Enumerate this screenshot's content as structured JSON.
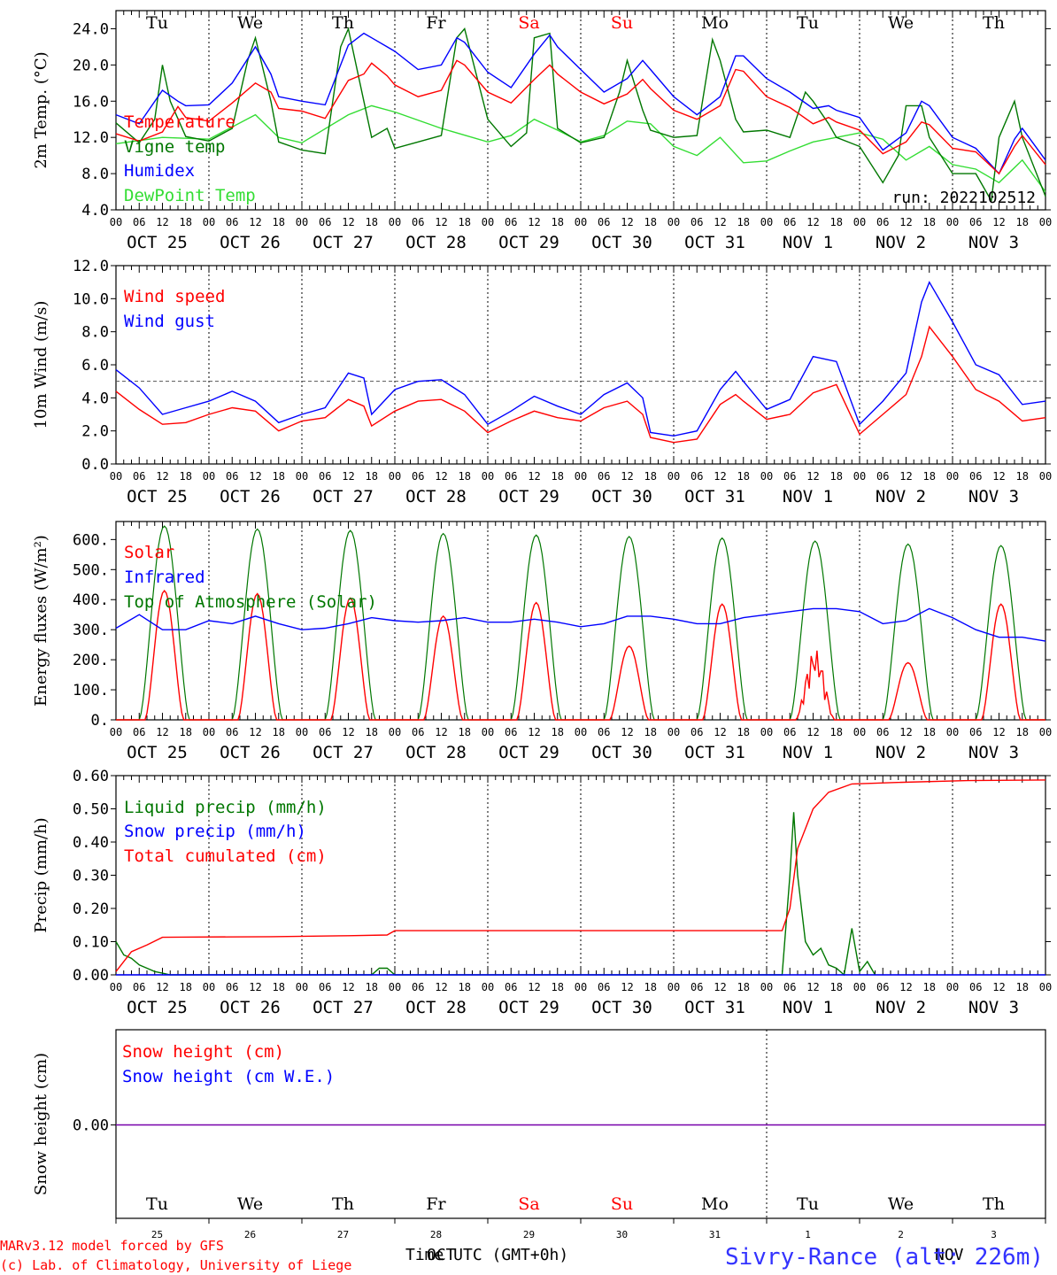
{
  "colors": {
    "red": "#ff0000",
    "blue": "#0000ff",
    "green": "#007700",
    "lightgreen": "#33dd33",
    "purple": "#7700aa",
    "axis": "#000000"
  },
  "day_labels": [
    "Tu",
    "We",
    "Th",
    "Fr",
    "Sa",
    "Su",
    "Mo",
    "Tu",
    "We",
    "Th"
  ],
  "weekend_day_indexes": [
    4,
    5
  ],
  "date_labels": [
    "OCT 25",
    "OCT 26",
    "OCT 27",
    "OCT 28",
    "OCT 29",
    "OCT 30",
    "OCT 31",
    "NOV  1",
    "NOV  2",
    "NOV  3"
  ],
  "hour_labels": [
    "00",
    "06",
    "12",
    "18"
  ],
  "final_hour_label": "00",
  "bottom_day_numbers": [
    "25",
    "26",
    "27",
    "28",
    "29",
    "30",
    "31",
    "1",
    "2",
    "3"
  ],
  "footer": {
    "model_line": "MARv3.12 model forced by GFS",
    "lab_line": "(c) Lab. of Climatology, University of Liege",
    "xlabel": "Time UTC (GMT+0h)",
    "month_overlay_1": "OCT",
    "month_overlay_2": "NOV",
    "station": "Sivry-Rance (alt: 226m)"
  },
  "chart_data": [
    {
      "id": "temp",
      "type": "line",
      "ylabel": "2m Temp. (°C)",
      "ylim": [
        4.0,
        26.0
      ],
      "yticks": [
        "4.0",
        "8.0",
        "12.0",
        "16.0",
        "20.0",
        "24.0"
      ],
      "annotation": "run: 2022102512",
      "x_unit": "hours since OCT 25 00 UTC",
      "series": [
        {
          "name": "Temperature",
          "color": "red",
          "x": [
            0,
            6,
            12,
            16,
            18,
            24,
            30,
            36,
            40,
            42,
            48,
            54,
            60,
            64,
            66,
            70,
            72,
            78,
            84,
            88,
            90,
            96,
            102,
            108,
            112,
            114,
            120,
            126,
            132,
            136,
            138,
            144,
            150,
            156,
            160,
            162,
            168,
            174,
            180,
            184,
            186,
            192,
            198,
            204,
            208,
            210,
            216,
            222,
            228,
            232,
            234,
            240
          ],
          "y": [
            12.4,
            11.6,
            12.6,
            15.4,
            14.2,
            13.8,
            15.8,
            18.0,
            17.0,
            15.2,
            14.9,
            14.1,
            18.3,
            19.0,
            20.2,
            18.8,
            17.8,
            16.5,
            17.2,
            20.5,
            20.0,
            17.0,
            15.8,
            18.4,
            20.0,
            19.0,
            17.0,
            15.7,
            16.8,
            18.4,
            17.4,
            15.0,
            14.0,
            15.5,
            19.5,
            19.3,
            16.5,
            15.3,
            13.5,
            14.2,
            13.7,
            12.8,
            10.2,
            11.5,
            13.7,
            13.4,
            10.8,
            10.4,
            8.0,
            11.0,
            12.2,
            9.0
          ]
        },
        {
          "name": "Vigne temp",
          "color": "green",
          "x": [
            0,
            6,
            10,
            12,
            14,
            18,
            24,
            30,
            34,
            36,
            40,
            42,
            48,
            54,
            58,
            60,
            64,
            66,
            70,
            72,
            78,
            84,
            88,
            90,
            96,
            102,
            106,
            108,
            112,
            114,
            120,
            126,
            130,
            132,
            136,
            138,
            144,
            150,
            154,
            156,
            160,
            162,
            168,
            174,
            178,
            180,
            184,
            186,
            192,
            198,
            202,
            204,
            208,
            210,
            216,
            222,
            226,
            228,
            232,
            234,
            240
          ],
          "y": [
            13.6,
            11.4,
            14.0,
            20.0,
            16.0,
            12.1,
            11.6,
            13.0,
            20.5,
            23.0,
            16.0,
            11.5,
            10.6,
            10.2,
            22.0,
            24.0,
            16.0,
            12.0,
            13.0,
            10.8,
            11.5,
            12.2,
            23.0,
            24.0,
            14.0,
            11.0,
            12.5,
            23.0,
            23.5,
            13.0,
            11.4,
            12.0,
            17.0,
            20.5,
            15.0,
            12.8,
            12.0,
            12.2,
            22.8,
            20.5,
            14.0,
            12.6,
            12.8,
            12.0,
            17.0,
            16.0,
            13.5,
            12.0,
            11.0,
            7.0,
            10.0,
            15.5,
            15.5,
            12.0,
            8.0,
            8.0,
            5.0,
            12.0,
            16.0,
            12.0,
            5.5
          ]
        },
        {
          "name": "Humidex",
          "color": "blue",
          "x": [
            0,
            6,
            12,
            16,
            18,
            24,
            30,
            36,
            40,
            42,
            48,
            54,
            60,
            64,
            66,
            70,
            72,
            78,
            84,
            88,
            90,
            96,
            102,
            108,
            112,
            114,
            120,
            126,
            132,
            136,
            138,
            144,
            150,
            156,
            160,
            162,
            168,
            174,
            180,
            184,
            186,
            192,
            198,
            204,
            208,
            210,
            216,
            222,
            228,
            232,
            234,
            240
          ],
          "y": [
            14.5,
            13.5,
            17.2,
            16.0,
            15.5,
            15.6,
            18.0,
            22.0,
            19.0,
            16.5,
            16.0,
            15.6,
            22.2,
            23.5,
            23.0,
            22.0,
            21.5,
            19.5,
            20.0,
            23.0,
            22.5,
            19.2,
            17.5,
            21.2,
            23.3,
            22.0,
            19.5,
            17.0,
            18.5,
            20.5,
            19.5,
            16.5,
            14.5,
            16.5,
            21.0,
            21.0,
            18.5,
            17.0,
            15.2,
            15.5,
            15.0,
            14.2,
            10.6,
            12.5,
            16.0,
            15.5,
            12.0,
            10.8,
            8.0,
            11.8,
            13.0,
            9.5
          ]
        },
        {
          "name": "DewPoint Temp",
          "color": "lightgreen",
          "x": [
            0,
            12,
            24,
            36,
            42,
            48,
            60,
            66,
            72,
            84,
            96,
            102,
            108,
            114,
            120,
            126,
            132,
            138,
            144,
            150,
            156,
            162,
            168,
            174,
            180,
            186,
            192,
            198,
            204,
            210,
            216,
            222,
            228,
            234,
            240
          ],
          "y": [
            11.3,
            12.0,
            11.8,
            14.5,
            12.0,
            11.4,
            14.5,
            15.5,
            14.8,
            13.0,
            11.5,
            12.2,
            14.0,
            12.8,
            11.5,
            12.2,
            13.8,
            13.5,
            11.0,
            10.0,
            12.0,
            9.2,
            9.4,
            10.5,
            11.5,
            12.0,
            12.5,
            11.8,
            9.5,
            11.0,
            9.0,
            8.5,
            7.0,
            9.5,
            6.0
          ]
        }
      ]
    },
    {
      "id": "wind",
      "type": "line",
      "ylabel": "10m Wind (m/s)",
      "ylim": [
        0.0,
        12.0
      ],
      "yticks": [
        "0.0",
        "2.0",
        "4.0",
        "6.0",
        "8.0",
        "10.0",
        "12.0"
      ],
      "ref_line": 5.0,
      "series": [
        {
          "name": "Wind speed",
          "color": "red",
          "x": [
            0,
            6,
            12,
            18,
            24,
            30,
            36,
            42,
            48,
            54,
            60,
            64,
            66,
            72,
            78,
            84,
            90,
            96,
            102,
            108,
            114,
            120,
            126,
            132,
            136,
            138,
            144,
            150,
            156,
            160,
            162,
            168,
            174,
            180,
            186,
            192,
            198,
            204,
            208,
            210,
            216,
            222,
            228,
            234,
            240
          ],
          "y": [
            4.4,
            3.3,
            2.4,
            2.5,
            3.0,
            3.4,
            3.2,
            2.0,
            2.6,
            2.8,
            3.9,
            3.5,
            2.3,
            3.2,
            3.8,
            3.9,
            3.2,
            1.9,
            2.6,
            3.2,
            2.8,
            2.6,
            3.4,
            3.8,
            3.0,
            1.6,
            1.3,
            1.5,
            3.6,
            4.2,
            3.8,
            2.7,
            3.0,
            4.3,
            4.8,
            1.8,
            3.0,
            4.2,
            6.5,
            8.3,
            6.5,
            4.5,
            3.8,
            2.6,
            2.8
          ]
        },
        {
          "name": "Wind gust",
          "color": "blue",
          "x": [
            0,
            6,
            12,
            18,
            24,
            30,
            36,
            42,
            48,
            54,
            60,
            64,
            66,
            72,
            78,
            84,
            90,
            96,
            102,
            108,
            114,
            120,
            126,
            132,
            136,
            138,
            144,
            150,
            156,
            160,
            162,
            168,
            174,
            180,
            186,
            192,
            198,
            204,
            208,
            210,
            216,
            222,
            228,
            234,
            240
          ],
          "y": [
            5.7,
            4.6,
            3.0,
            3.4,
            3.8,
            4.4,
            3.8,
            2.5,
            3.0,
            3.4,
            5.5,
            5.2,
            3.0,
            4.5,
            5.0,
            5.1,
            4.2,
            2.4,
            3.2,
            4.1,
            3.5,
            3.0,
            4.2,
            4.9,
            4.0,
            1.9,
            1.7,
            2.0,
            4.5,
            5.6,
            5.0,
            3.3,
            3.9,
            6.5,
            6.2,
            2.4,
            3.8,
            5.5,
            9.8,
            11.0,
            8.6,
            6.0,
            5.4,
            3.6,
            3.8
          ]
        }
      ]
    },
    {
      "id": "energy",
      "type": "line",
      "ylabel": "Energy fluxes (W/m²)",
      "ylim": [
        0,
        660
      ],
      "yticks": [
        "0.",
        "100.",
        "200.",
        "300.",
        "400.",
        "500.",
        "600."
      ],
      "series": [
        {
          "name": "Solar",
          "color": "red",
          "peaks": [
            430,
            420,
            405,
            345,
            390,
            245,
            385,
            235,
            190,
            385
          ]
        },
        {
          "name": "Infrared",
          "color": "blue",
          "x": [
            0,
            6,
            12,
            18,
            24,
            30,
            36,
            42,
            48,
            54,
            60,
            66,
            72,
            78,
            84,
            90,
            96,
            102,
            108,
            114,
            120,
            126,
            132,
            138,
            144,
            150,
            156,
            162,
            168,
            174,
            180,
            186,
            192,
            198,
            204,
            210,
            216,
            222,
            228,
            234,
            240
          ],
          "y": [
            305,
            350,
            300,
            300,
            330,
            320,
            345,
            320,
            300,
            305,
            320,
            340,
            330,
            325,
            330,
            340,
            325,
            325,
            335,
            325,
            310,
            320,
            345,
            345,
            335,
            320,
            320,
            340,
            350,
            360,
            370,
            370,
            360,
            320,
            330,
            370,
            340,
            300,
            275,
            275,
            262
          ]
        },
        {
          "name": "Top of Atmosphere (Solar)",
          "color": "green",
          "peaks": [
            645,
            635,
            630,
            620,
            615,
            610,
            605,
            595,
            585,
            580
          ]
        }
      ]
    },
    {
      "id": "precip",
      "type": "line",
      "ylabel": "Precip (mm/h)",
      "ylim": [
        0.0,
        0.6
      ],
      "yticks": [
        "0.00",
        "0.10",
        "0.20",
        "0.30",
        "0.40",
        "0.50",
        "0.60"
      ],
      "series": [
        {
          "name": "Liquid precip (mm/h)",
          "color": "green",
          "x": [
            0,
            2,
            4,
            6,
            8,
            10,
            12,
            14,
            16,
            20,
            40,
            42,
            60,
            66,
            68,
            70,
            72,
            74,
            172,
            174,
            175,
            176,
            178,
            180,
            182,
            184,
            186,
            188,
            190,
            192,
            194,
            196
          ],
          "y": [
            0.1,
            0.06,
            0.05,
            0.03,
            0.02,
            0.01,
            0.005,
            0.0,
            0.0,
            0.0,
            0.0,
            0.0,
            0.0,
            0.0,
            0.02,
            0.02,
            0.0,
            0.0,
            0.0,
            0.3,
            0.49,
            0.3,
            0.1,
            0.06,
            0.08,
            0.03,
            0.02,
            0.0,
            0.14,
            0.01,
            0.04,
            0.0
          ]
        },
        {
          "name": "Snow precip (mm/h)",
          "color": "blue",
          "x": [
            0,
            240
          ],
          "y": [
            0,
            0
          ]
        },
        {
          "name": "Total cumulated (cm)",
          "color": "red",
          "x": [
            0,
            4,
            8,
            12,
            20,
            40,
            60,
            70,
            72,
            172,
            174,
            176,
            178,
            180,
            184,
            190,
            200,
            220,
            240
          ],
          "y": [
            0.01,
            0.07,
            0.09,
            0.113,
            0.114,
            0.115,
            0.118,
            0.12,
            0.133,
            0.133,
            0.2,
            0.38,
            0.44,
            0.5,
            0.55,
            0.575,
            0.579,
            0.585,
            0.587
          ]
        }
      ]
    },
    {
      "id": "snow",
      "type": "line",
      "ylabel": "Snow height (cm)",
      "zero_label": "0.00",
      "series": [
        {
          "name": "Snow height (cm)",
          "color": "red",
          "x": [
            0,
            240
          ],
          "y": [
            0,
            0
          ]
        },
        {
          "name": "Snow height (cm W.E.)",
          "color": "blue",
          "x": [
            0,
            240
          ],
          "y": [
            0,
            0
          ]
        }
      ]
    }
  ]
}
